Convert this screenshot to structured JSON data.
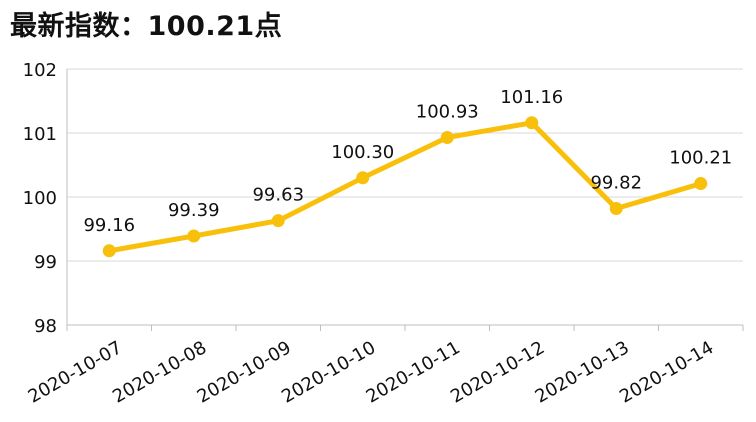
{
  "header": {
    "title": "最新指数：100.21点"
  },
  "chart_data": {
    "type": "line",
    "title": "",
    "xlabel": "",
    "ylabel": "",
    "categories": [
      "2020-10-07",
      "2020-10-08",
      "2020-10-09",
      "2020-10-10",
      "2020-10-11",
      "2020-10-12",
      "2020-10-13",
      "2020-10-14"
    ],
    "series": [
      {
        "values": [
          99.16,
          99.39,
          99.63,
          100.3,
          100.93,
          101.16,
          99.82,
          100.21
        ],
        "labels": [
          "99.16",
          "99.39",
          "99.63",
          "100.30",
          "100.93",
          "101.16",
          "99.82",
          "100.21"
        ]
      }
    ],
    "ylim": [
      98,
      102
    ],
    "yticks": [
      "98",
      "99",
      "100",
      "101",
      "102"
    ],
    "grid": true,
    "legend": "none",
    "colors": {
      "line": "#F8C00B",
      "grid": "#D9D9D9",
      "axis": "#BFBFBF"
    }
  }
}
